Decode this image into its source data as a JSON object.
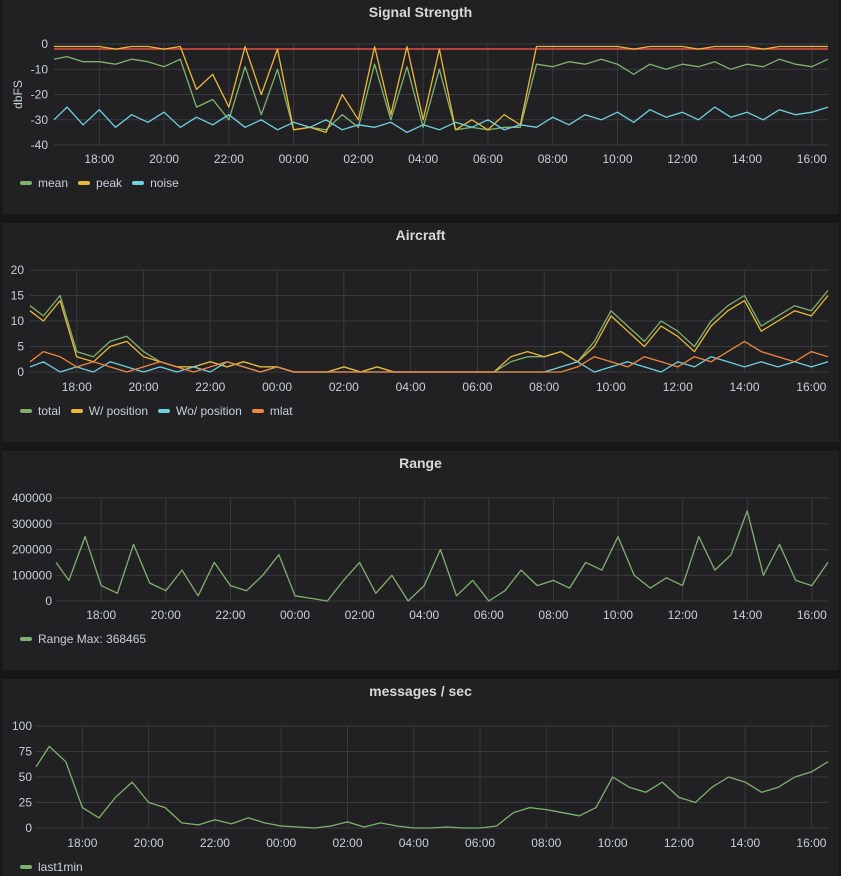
{
  "time_labels": [
    "18:00",
    "20:00",
    "22:00",
    "00:00",
    "02:00",
    "04:00",
    "06:00",
    "08:00",
    "10:00",
    "12:00",
    "14:00",
    "16:00"
  ],
  "colors": {
    "green": "#7eb26d",
    "yellow": "#eab839",
    "cyan": "#6ed0e0",
    "orange": "#ef843c",
    "red": "#e24d42"
  },
  "chart_data": [
    {
      "type": "line",
      "title": "Signal Strength",
      "ylabel": "dbFS",
      "ylim": [
        -40,
        0
      ],
      "yticks": [
        "0",
        "-10",
        "-20",
        "-30",
        "-40"
      ],
      "xlim": [
        16.6,
        40.5
      ],
      "threshold": -2,
      "series": [
        {
          "name": "mean",
          "color": "#7eb26d",
          "x": [
            16.6,
            17,
            17.5,
            18,
            18.5,
            19,
            19.5,
            20,
            20.5,
            21,
            21.5,
            22,
            22.5,
            23,
            23.5,
            24,
            24.5,
            25,
            25.5,
            26,
            26.5,
            27,
            27.5,
            28,
            28.5,
            29,
            29.5,
            30,
            30.5,
            31,
            31.5,
            32,
            32.5,
            33,
            33.5,
            34,
            34.5,
            35,
            35.5,
            36,
            36.5,
            37,
            37.5,
            38,
            38.5,
            39,
            39.5,
            40,
            40.5
          ],
          "y": [
            -6,
            -5,
            -7,
            -7,
            -8,
            -6,
            -7,
            -9,
            -6,
            -25,
            -22,
            -30,
            -9,
            -28,
            -10,
            -34,
            -33,
            -34,
            -28,
            -33,
            -8,
            -30,
            -9,
            -33,
            -10,
            -34,
            -33,
            -34,
            -33,
            -33,
            -8,
            -9,
            -7,
            -8,
            -6,
            -8,
            -12,
            -8,
            -10,
            -8,
            -9,
            -7,
            -10,
            -8,
            -9,
            -6,
            -8,
            -9,
            -6
          ]
        },
        {
          "name": "peak",
          "color": "#eab839",
          "x": [
            16.6,
            17,
            17.5,
            18,
            18.5,
            19,
            19.5,
            20,
            20.5,
            21,
            21.5,
            22,
            22.5,
            23,
            23.5,
            24,
            24.5,
            25,
            25.5,
            26,
            26.5,
            27,
            27.5,
            28,
            28.5,
            29,
            29.5,
            30,
            30.5,
            31,
            31.5,
            32,
            32.5,
            33,
            33.5,
            34,
            34.5,
            35,
            35.5,
            36,
            36.5,
            37,
            37.5,
            38,
            38.5,
            39,
            39.5,
            40,
            40.5
          ],
          "y": [
            -1,
            -1,
            -1,
            -1,
            -2,
            -1,
            -1,
            -2,
            -1,
            -18,
            -12,
            -25,
            -1,
            -20,
            -2,
            -34,
            -33,
            -35,
            -20,
            -30,
            -1,
            -28,
            -1,
            -30,
            -2,
            -34,
            -30,
            -34,
            -28,
            -32,
            -1,
            -1,
            -1,
            -1,
            -1,
            -1,
            -2,
            -1,
            -1,
            -1,
            -2,
            -1,
            -1,
            -1,
            -2,
            -1,
            -1,
            -1,
            -1
          ]
        },
        {
          "name": "noise",
          "color": "#6ed0e0",
          "x": [
            16.6,
            17,
            17.5,
            18,
            18.5,
            19,
            19.5,
            20,
            20.5,
            21,
            21.5,
            22,
            22.5,
            23,
            23.5,
            24,
            24.5,
            25,
            25.5,
            26,
            26.5,
            27,
            27.5,
            28,
            28.5,
            29,
            29.5,
            30,
            30.5,
            31,
            31.5,
            32,
            32.5,
            33,
            33.5,
            34,
            34.5,
            35,
            35.5,
            36,
            36.5,
            37,
            37.5,
            38,
            38.5,
            39,
            39.5,
            40,
            40.5
          ],
          "y": [
            -30,
            -25,
            -32,
            -26,
            -33,
            -28,
            -31,
            -27,
            -33,
            -29,
            -32,
            -28,
            -33,
            -30,
            -34,
            -31,
            -33,
            -30,
            -34,
            -32,
            -33,
            -31,
            -35,
            -32,
            -34,
            -31,
            -33,
            -30,
            -34,
            -32,
            -33,
            -29,
            -32,
            -28,
            -30,
            -27,
            -31,
            -26,
            -29,
            -27,
            -30,
            -25,
            -29,
            -27,
            -30,
            -26,
            -28,
            -27,
            -25
          ]
        }
      ],
      "legend": [
        {
          "label": "mean",
          "color": "#7eb26d"
        },
        {
          "label": "peak",
          "color": "#eab839"
        },
        {
          "label": "noise",
          "color": "#6ed0e0"
        }
      ]
    },
    {
      "type": "line",
      "title": "Aircraft",
      "ylabel": "",
      "ylim": [
        0,
        20
      ],
      "yticks": [
        "20",
        "15",
        "10",
        "5",
        "0"
      ],
      "xlim": [
        16.6,
        40.5
      ],
      "series": [
        {
          "name": "total",
          "color": "#7eb26d",
          "x": [
            16.6,
            17,
            17.5,
            18,
            18.5,
            19,
            19.5,
            20,
            20.5,
            21,
            21.5,
            22,
            22.5,
            23,
            23.5,
            24,
            24.5,
            25,
            25.5,
            26,
            26.5,
            27,
            27.5,
            28,
            28.5,
            29,
            29.5,
            30,
            30.5,
            31,
            31.5,
            32,
            32.5,
            33,
            33.5,
            34,
            34.5,
            35,
            35.5,
            36,
            36.5,
            37,
            37.5,
            38,
            38.5,
            39,
            39.5,
            40,
            40.5
          ],
          "y": [
            13,
            11,
            15,
            4,
            3,
            6,
            7,
            4,
            2,
            1,
            1,
            2,
            1,
            2,
            1,
            1,
            0,
            0,
            0,
            1,
            0,
            1,
            0,
            0,
            0,
            0,
            0,
            0,
            0,
            2,
            3,
            3,
            4,
            2,
            6,
            12,
            9,
            6,
            10,
            8,
            5,
            10,
            13,
            15,
            9,
            11,
            13,
            12,
            16
          ]
        },
        {
          "name": "W/ position",
          "color": "#eab839",
          "x": [
            16.6,
            17,
            17.5,
            18,
            18.5,
            19,
            19.5,
            20,
            20.5,
            21,
            21.5,
            22,
            22.5,
            23,
            23.5,
            24,
            24.5,
            25,
            25.5,
            26,
            26.5,
            27,
            27.5,
            28,
            28.5,
            29,
            29.5,
            30,
            30.5,
            31,
            31.5,
            32,
            32.5,
            33,
            33.5,
            34,
            34.5,
            35,
            35.5,
            36,
            36.5,
            37,
            37.5,
            38,
            38.5,
            39,
            39.5,
            40,
            40.5
          ],
          "y": [
            12,
            10,
            14,
            3,
            2,
            5,
            6,
            3,
            2,
            1,
            1,
            2,
            1,
            2,
            1,
            1,
            0,
            0,
            0,
            1,
            0,
            1,
            0,
            0,
            0,
            0,
            0,
            0,
            0,
            3,
            4,
            3,
            4,
            2,
            5,
            11,
            8,
            5,
            9,
            7,
            4,
            9,
            12,
            14,
            8,
            10,
            12,
            11,
            15
          ]
        },
        {
          "name": "Wo/ position",
          "color": "#6ed0e0",
          "x": [
            16.6,
            17,
            17.5,
            18,
            18.5,
            19,
            19.5,
            20,
            20.5,
            21,
            21.5,
            22,
            22.5,
            23,
            23.5,
            24,
            24.5,
            25,
            25.5,
            26,
            26.5,
            27,
            27.5,
            28,
            28.5,
            29,
            29.5,
            30,
            30.5,
            31,
            31.5,
            32,
            32.5,
            33,
            33.5,
            34,
            34.5,
            35,
            35.5,
            36,
            36.5,
            37,
            37.5,
            38,
            38.5,
            39,
            39.5,
            40,
            40.5
          ],
          "y": [
            1,
            2,
            0,
            1,
            0,
            2,
            1,
            0,
            1,
            0,
            1,
            0,
            2,
            1,
            0,
            1,
            0,
            0,
            0,
            0,
            0,
            0,
            0,
            0,
            0,
            0,
            0,
            0,
            0,
            0,
            0,
            0,
            1,
            2,
            0,
            1,
            2,
            1,
            0,
            2,
            1,
            3,
            2,
            1,
            2,
            1,
            2,
            1,
            2
          ]
        },
        {
          "name": "mlat",
          "color": "#ef843c",
          "x": [
            16.6,
            17,
            17.5,
            18,
            18.5,
            19,
            19.5,
            20,
            20.5,
            21,
            21.5,
            22,
            22.5,
            23,
            23.5,
            24,
            24.5,
            25,
            25.5,
            26,
            26.5,
            27,
            27.5,
            28,
            28.5,
            29,
            29.5,
            30,
            30.5,
            31,
            31.5,
            32,
            32.5,
            33,
            33.5,
            34,
            34.5,
            35,
            35.5,
            36,
            36.5,
            37,
            37.5,
            38,
            38.5,
            39,
            39.5,
            40,
            40.5
          ],
          "y": [
            2,
            4,
            3,
            1,
            2,
            1,
            0,
            1,
            2,
            1,
            0,
            1,
            2,
            1,
            0,
            1,
            0,
            0,
            0,
            0,
            0,
            0,
            0,
            0,
            0,
            0,
            0,
            0,
            0,
            0,
            0,
            0,
            0,
            1,
            3,
            2,
            1,
            3,
            2,
            1,
            3,
            2,
            4,
            6,
            4,
            3,
            2,
            4,
            3
          ]
        }
      ],
      "legend": [
        {
          "label": "total",
          "color": "#7eb26d"
        },
        {
          "label": "W/ position",
          "color": "#eab839"
        },
        {
          "label": "Wo/ position",
          "color": "#6ed0e0"
        },
        {
          "label": "mlat",
          "color": "#ef843c"
        }
      ]
    },
    {
      "type": "line",
      "title": "Range",
      "ylabel": "",
      "ylim": [
        0,
        400000
      ],
      "yticks": [
        "400000",
        "300000",
        "200000",
        "100000",
        "0"
      ],
      "xlim": [
        16.6,
        40.5
      ],
      "series": [
        {
          "name": "Range",
          "color": "#7eb26d",
          "x": [
            16.6,
            17,
            17.5,
            18,
            18.5,
            19,
            19.5,
            20,
            20.5,
            21,
            21.5,
            22,
            22.5,
            23,
            23.5,
            24,
            24.5,
            25,
            25.5,
            26,
            26.5,
            27,
            27.5,
            28,
            28.5,
            29,
            29.5,
            30,
            30.5,
            31,
            31.5,
            32,
            32.5,
            33,
            33.5,
            34,
            34.5,
            35,
            35.5,
            36,
            36.5,
            37,
            37.5,
            38,
            38.5,
            39,
            39.5,
            40,
            40.5
          ],
          "y": [
            150000,
            80000,
            250000,
            60000,
            30000,
            220000,
            70000,
            40000,
            120000,
            20000,
            150000,
            60000,
            40000,
            100000,
            180000,
            20000,
            10000,
            0,
            80000,
            150000,
            30000,
            100000,
            0,
            60000,
            200000,
            20000,
            80000,
            0,
            40000,
            120000,
            60000,
            80000,
            50000,
            150000,
            120000,
            250000,
            100000,
            50000,
            90000,
            60000,
            250000,
            120000,
            180000,
            350000,
            100000,
            220000,
            80000,
            60000,
            150000
          ]
        }
      ],
      "legend": [
        {
          "label": "Range  Max: 368465",
          "color": "#7eb26d"
        }
      ]
    },
    {
      "type": "line",
      "title": "messages / sec",
      "ylabel": "",
      "ylim": [
        0,
        100
      ],
      "yticks": [
        "100",
        "75",
        "50",
        "25",
        "0"
      ],
      "xlim": [
        16.6,
        40.5
      ],
      "series": [
        {
          "name": "last1min",
          "color": "#7eb26d",
          "x": [
            16.6,
            17,
            17.5,
            18,
            18.5,
            19,
            19.5,
            20,
            20.5,
            21,
            21.5,
            22,
            22.5,
            23,
            23.5,
            24,
            24.5,
            25,
            25.5,
            26,
            26.5,
            27,
            27.5,
            28,
            28.5,
            29,
            29.5,
            30,
            30.5,
            31,
            31.5,
            32,
            32.5,
            33,
            33.5,
            34,
            34.5,
            35,
            35.5,
            36,
            36.5,
            37,
            37.5,
            38,
            38.5,
            39,
            39.5,
            40,
            40.5
          ],
          "y": [
            60,
            80,
            65,
            20,
            10,
            30,
            45,
            25,
            20,
            5,
            3,
            8,
            4,
            10,
            5,
            2,
            1,
            0,
            2,
            6,
            1,
            5,
            2,
            0,
            0,
            1,
            0,
            0,
            2,
            15,
            20,
            18,
            15,
            12,
            20,
            50,
            40,
            35,
            45,
            30,
            25,
            40,
            50,
            45,
            35,
            40,
            50,
            55,
            65
          ]
        }
      ],
      "legend": [
        {
          "label": "last1min",
          "color": "#7eb26d"
        }
      ]
    }
  ]
}
